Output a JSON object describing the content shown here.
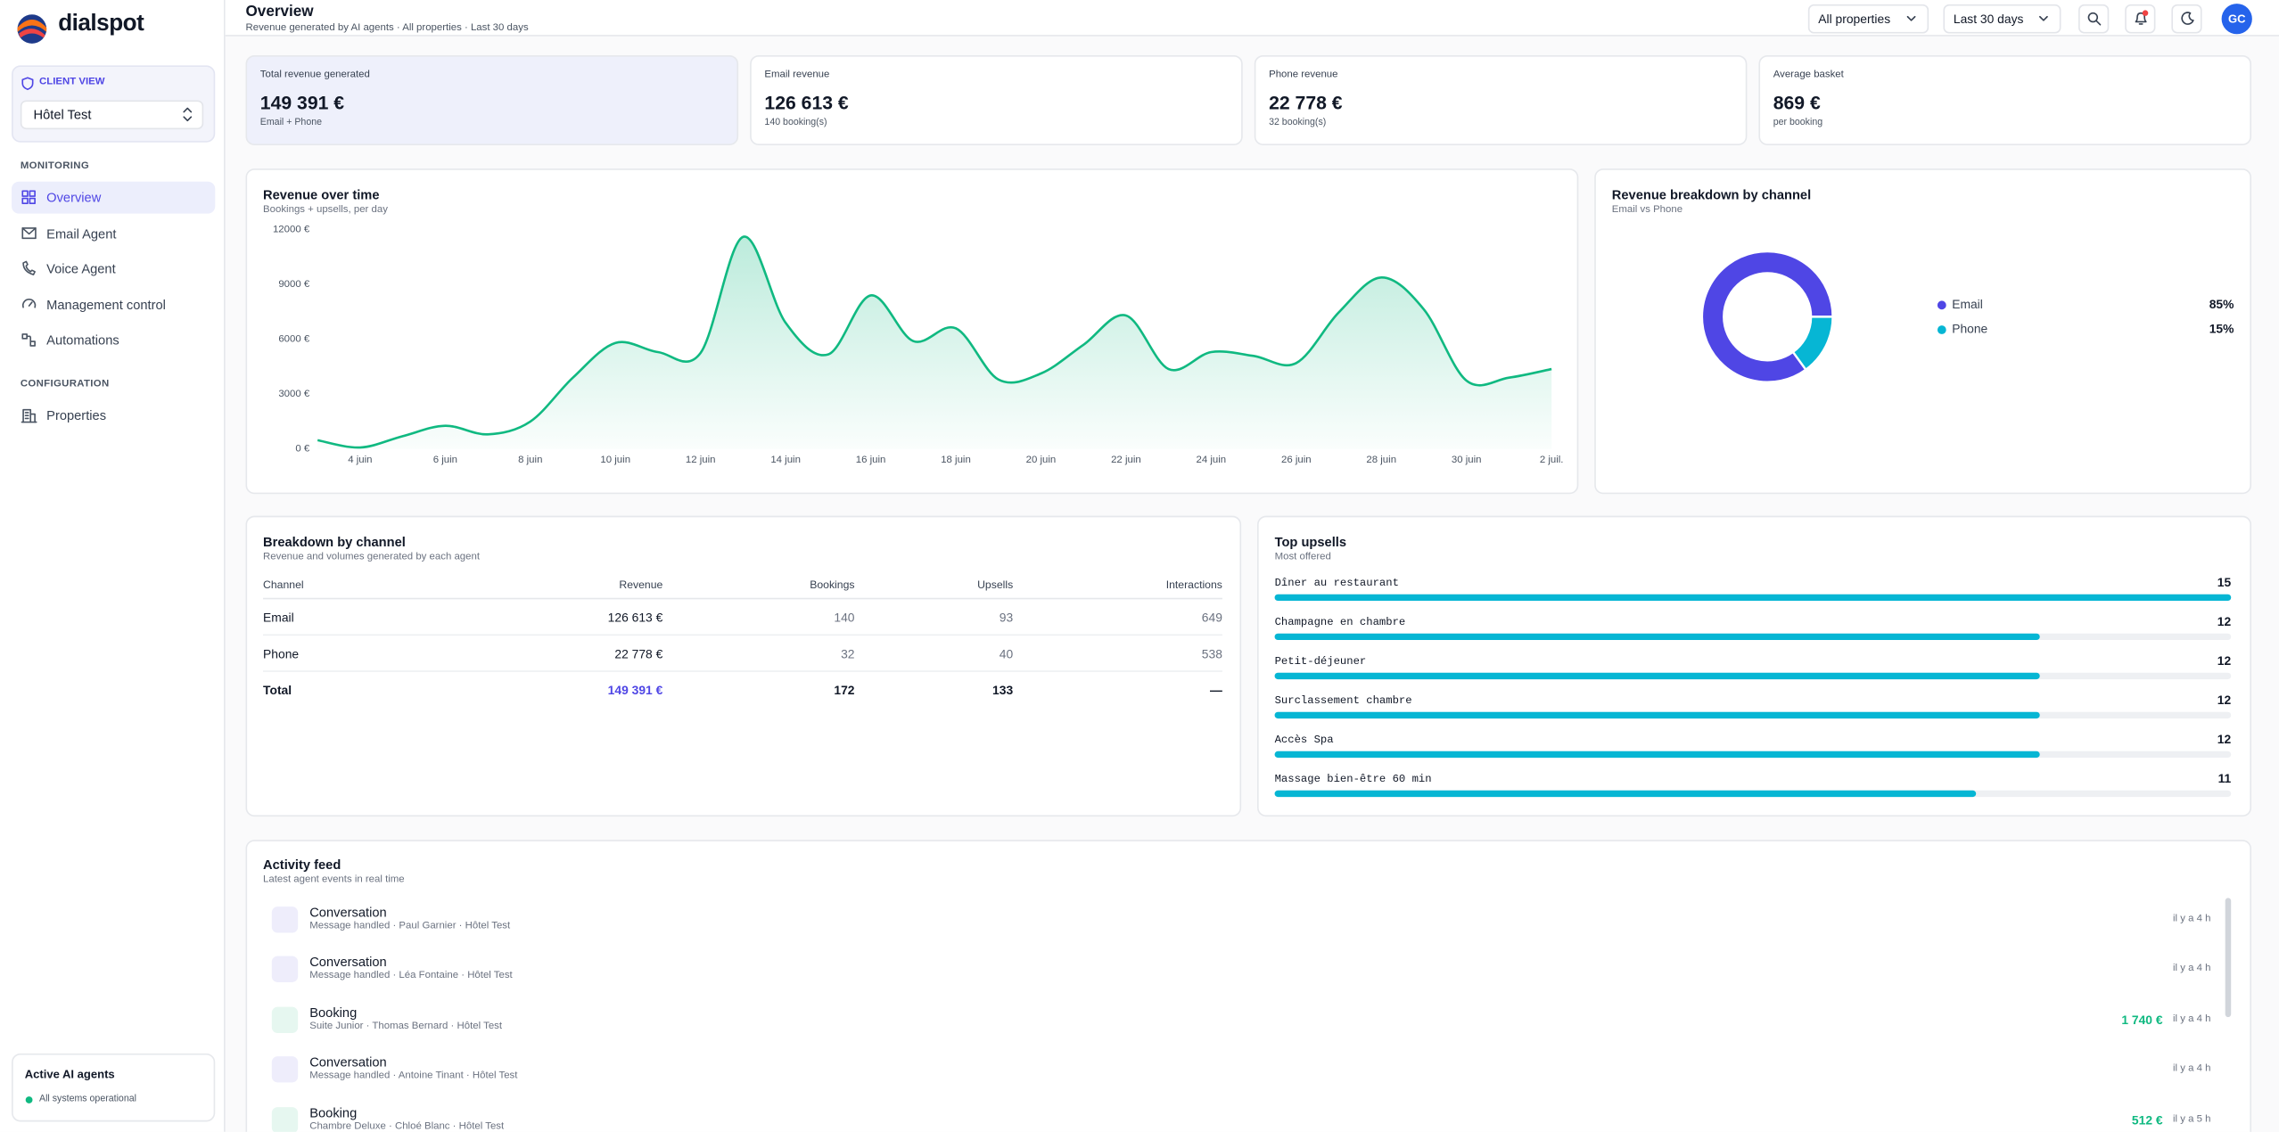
{
  "sidebar": {
    "brand": "dialspot",
    "client_view_label": "CLIENT VIEW",
    "client": "Hôtel Test",
    "sections": [
      {
        "title": "MONITORING",
        "items": [
          "Overview",
          "Email Agent",
          "Voice Agent",
          "Management control",
          "Automations"
        ]
      },
      {
        "title": "CONFIGURATION",
        "items": [
          "Properties"
        ]
      }
    ],
    "status": {
      "title": "Active AI agents",
      "text": "All systems operational"
    }
  },
  "header": {
    "title": "Overview",
    "subtitle": "Revenue generated by AI agents · All properties · Last 30 days",
    "filters": [
      "All properties",
      "Last 30 days"
    ],
    "avatar": "GC"
  },
  "kpis": [
    {
      "label": "Total revenue generated",
      "value": "149 391 €",
      "note": "Email + Phone"
    },
    {
      "label": "Email revenue",
      "value": "126 613 €",
      "note": "140 booking(s)"
    },
    {
      "label": "Phone revenue",
      "value": "22 778 €",
      "note": "32 booking(s)"
    },
    {
      "label": "Average basket",
      "value": "869 €",
      "note": "per booking"
    }
  ],
  "chart_data": [
    {
      "type": "line",
      "title": "Revenue over time",
      "subtitle": "Bookings + upsells, per day",
      "color": "#10b981",
      "categories": [
        null,
        "4 juin",
        null,
        "6 juin",
        null,
        "8 juin",
        null,
        "10 juin",
        null,
        "12 juin",
        null,
        "14 juin",
        null,
        "16 juin",
        null,
        "18 juin",
        null,
        "20 juin",
        null,
        "22 juin",
        null,
        "24 juin",
        null,
        "26 juin",
        null,
        "28 juin",
        null,
        "30 juin",
        null,
        "2 juil."
      ],
      "values": [
        480,
        80,
        700,
        1270,
        800,
        1500,
        3900,
        5800,
        5300,
        5250,
        11600,
        6900,
        5170,
        8400,
        5900,
        6600,
        3800,
        4130,
        5700,
        7300,
        4370,
        5300,
        5090,
        4700,
        7470,
        9380,
        7630,
        3740,
        3900,
        4370
      ],
      "ylim": [
        0,
        12000
      ],
      "yticks": [
        {
          "value": 0,
          "label": "0 €"
        },
        {
          "value": 3000,
          "label": "3000 €"
        },
        {
          "value": 6000,
          "label": "6000 €"
        },
        {
          "value": 9000,
          "label": "9000 €"
        },
        {
          "value": 12000,
          "label": "12000 €"
        }
      ],
      "grid": false
    },
    {
      "type": "pie",
      "title": "Revenue breakdown by channel",
      "subtitle": "Email vs Phone",
      "donut": true,
      "series": [
        {
          "name": "Email",
          "color": "#4f46e5"
        },
        {
          "name": "Phone",
          "color": "#06b6d4"
        }
      ],
      "values": [
        85,
        15
      ],
      "value_labels": [
        "85%",
        "15%"
      ]
    },
    {
      "type": "bar",
      "orientation": "horizontal",
      "title": "Top upsells",
      "subtitle": "Most offered",
      "color": "#06b6d4",
      "categories": [
        "Dîner au restaurant",
        "Champagne en chambre",
        "Petit-déjeuner",
        "Surclassement chambre",
        "Accès Spa",
        "Massage bien-être 60 min"
      ],
      "values": [
        15,
        12,
        12,
        12,
        12,
        11
      ],
      "xlim": [
        0,
        15
      ]
    }
  ],
  "table": {
    "title": "Breakdown by channel",
    "subtitle": "Revenue and volumes generated by each agent",
    "columns": [
      "Channel",
      "Revenue",
      "Bookings",
      "Upsells",
      "Interactions"
    ],
    "rows": [
      [
        "Email",
        "126 613 €",
        "140",
        "93",
        "649"
      ],
      [
        "Phone",
        "22 778 €",
        "32",
        "40",
        "538"
      ]
    ],
    "total": [
      "Total",
      "149 391 €",
      "172",
      "133",
      "—"
    ]
  },
  "activity": {
    "title": "Activity feed",
    "subtitle": "Latest agent events in real time",
    "items": [
      {
        "title": "Conversation",
        "detail": "Message handled · Paul Garnier · Hôtel Test",
        "time": "il y a 4 h"
      },
      {
        "title": "Conversation",
        "detail": "Message handled · Léa Fontaine · Hôtel Test",
        "time": "il y a 4 h"
      },
      {
        "title": "Booking",
        "detail": "Suite Junior · Thomas Bernard · Hôtel Test",
        "amount": "1 740 €",
        "time": "il y a 4 h"
      },
      {
        "title": "Conversation",
        "detail": "Message handled · Antoine Tinant · Hôtel Test",
        "time": "il y a 4 h"
      },
      {
        "title": "Booking",
        "detail": "Chambre Deluxe · Chloé Blanc · Hôtel Test",
        "amount": "512 €",
        "time": "il y a 5 h"
      }
    ]
  }
}
